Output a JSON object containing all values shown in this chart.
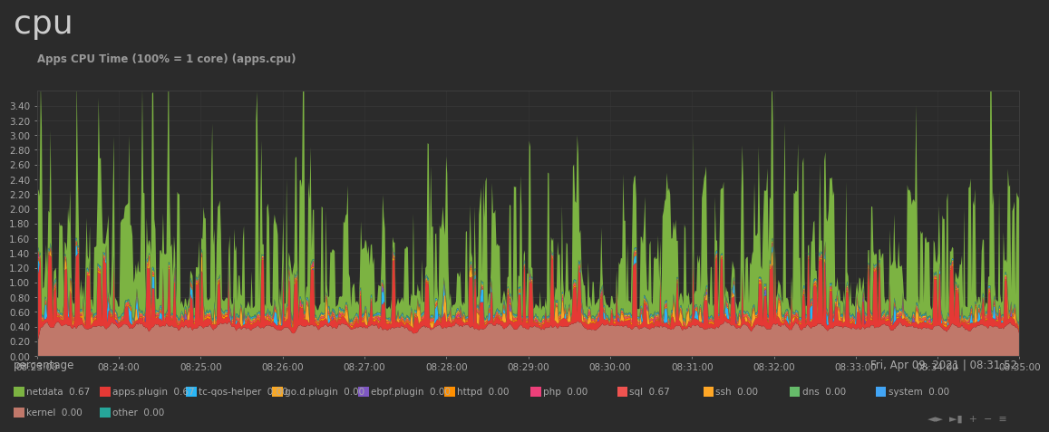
{
  "title": "cpu",
  "subtitle": "Apps CPU Time (100% = 1 core) (apps.cpu)",
  "ylabel": "percentage",
  "date_label": "Fri, Apr 09, 2021 | 08:31:52",
  "bg_color": "#2b2b2b",
  "text_color": "#aaaaaa",
  "grid_color": "#3d3d3d",
  "ylim": [
    0.0,
    3.6
  ],
  "yticks": [
    0.0,
    0.2,
    0.4,
    0.6,
    0.8,
    1.0,
    1.2,
    1.4,
    1.6,
    1.8,
    2.0,
    2.2,
    2.4,
    2.6,
    2.8,
    3.0,
    3.2,
    3.4
  ],
  "n_points": 900,
  "xtick_labels": [
    "08:23:00",
    "08:24:00",
    "08:25:00",
    "08:26:00",
    "08:27:00",
    "08:28:00",
    "08:29:00",
    "08:30:00",
    "08:31:00",
    "08:32:00",
    "08:33:00",
    "08:34:00",
    "08:35:00"
  ],
  "series": [
    {
      "name": "netdata",
      "value": "0.67",
      "color": "#7cb342"
    },
    {
      "name": "apps.plugin",
      "value": "0.67",
      "color": "#e53935"
    },
    {
      "name": "tc-qos-helper",
      "value": "0.00",
      "color": "#29b6f6"
    },
    {
      "name": "go.d.plugin",
      "value": "0.00",
      "color": "#f9a825"
    },
    {
      "name": "ebpf.plugin",
      "value": "0.00",
      "color": "#7e57c2"
    },
    {
      "name": "httpd",
      "value": "0.00",
      "color": "#ff8f00"
    },
    {
      "name": "php",
      "value": "0.00",
      "color": "#ec407a"
    },
    {
      "name": "sql",
      "value": "0.67",
      "color": "#ef5350"
    },
    {
      "name": "ssh",
      "value": "0.00",
      "color": "#ffa726"
    },
    {
      "name": "dns",
      "value": "0.00",
      "color": "#66bb6a"
    },
    {
      "name": "system",
      "value": "0.00",
      "color": "#42a5f5"
    },
    {
      "name": "kernel",
      "value": "0.00",
      "color": "#c0786a"
    },
    {
      "name": "other",
      "value": "0.00",
      "color": "#26a69a"
    }
  ],
  "seed": 12345
}
